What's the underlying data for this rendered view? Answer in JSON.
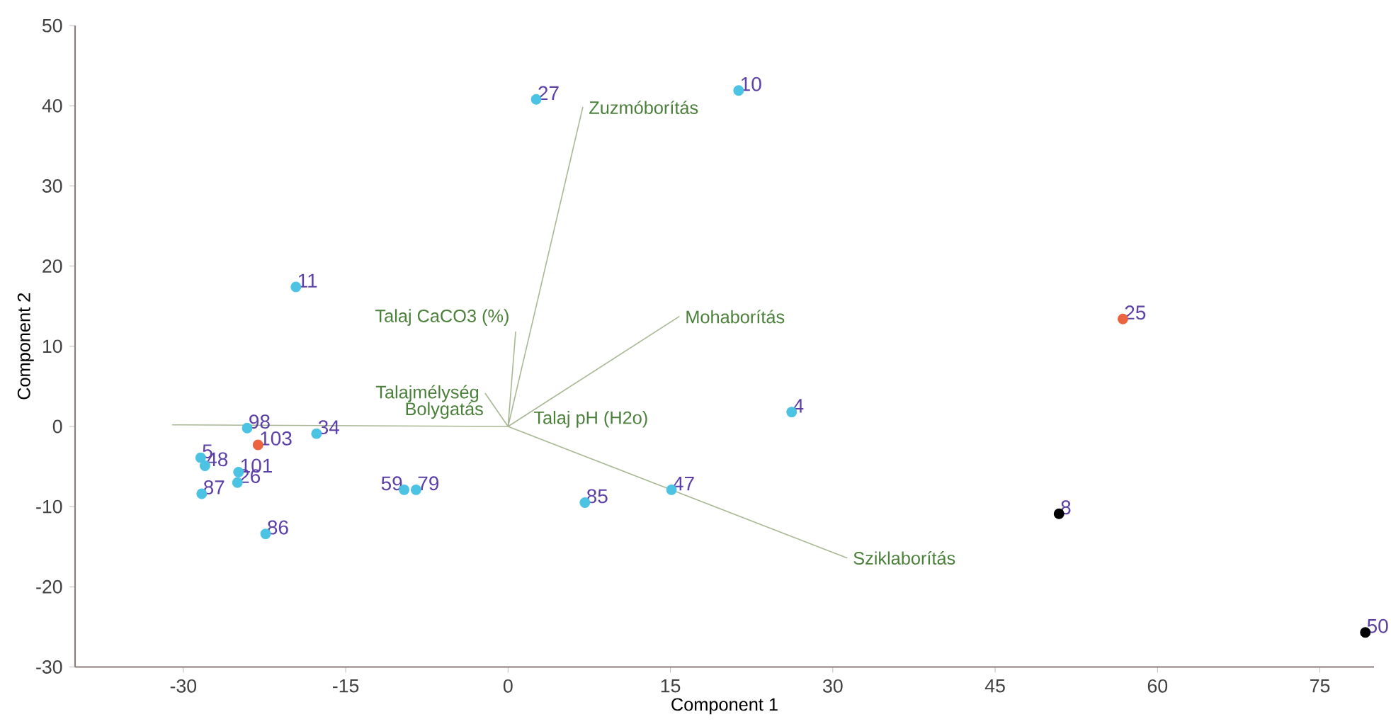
{
  "chart_data": {
    "type": "scatter",
    "xlabel": "Component 1",
    "ylabel": "Component 2",
    "xlim": [
      -40,
      80
    ],
    "ylim": [
      -30,
      50
    ],
    "xticks": [
      -30,
      -15,
      0,
      15,
      30,
      45,
      60,
      75
    ],
    "yticks": [
      -30,
      -20,
      -10,
      0,
      10,
      20,
      30,
      40,
      50
    ],
    "grid": false,
    "series": [
      {
        "type": "line",
        "color": "#a8b894",
        "x": [
          0,
          6.9,
          null,
          0,
          0.7,
          null,
          0,
          15.8,
          null,
          0,
          -2.1,
          null,
          0,
          -31.0,
          null,
          0,
          31.3
        ],
        "values": [
          0,
          39.8,
          null,
          0,
          11.8,
          null,
          0,
          13.7,
          null,
          0,
          4.1,
          null,
          0,
          0.2,
          null,
          0,
          -16.4
        ]
      },
      {
        "color": "#4cc3e3",
        "marker": "circle",
        "x": [
          2.6,
          21.3,
          -19.6,
          26.2,
          15.1,
          7.1,
          -9.6,
          -8.5,
          -17.7,
          -24.1,
          -28.4,
          -28.0,
          -24.9,
          -25.0,
          -28.3,
          -22.4
        ],
        "values": [
          40.8,
          41.9,
          17.4,
          1.8,
          -7.9,
          -9.5,
          -7.9,
          -7.9,
          -0.9,
          -0.2,
          -3.9,
          -4.9,
          -5.7,
          -7.0,
          -8.4,
          -13.4
        ]
      },
      {
        "color": "#e9643f",
        "marker": "circle",
        "x": [
          56.8,
          -23.1
        ],
        "values": [
          13.4,
          -2.3
        ]
      },
      {
        "color": "#000000",
        "marker": "circle",
        "x": [
          50.9,
          79.2
        ],
        "values": [
          -10.9,
          -25.7
        ]
      }
    ],
    "annotations": [
      {
        "text": "Zuzmóborítás",
        "x": 6.9,
        "y": 39.8
      },
      {
        "text": "Talaj CaCO3 (%)",
        "x": 0.7,
        "y": 11.8
      },
      {
        "text": "Mohaborítás",
        "x": 15.8,
        "y": 13.7
      },
      {
        "text": "Talajmélység",
        "x": -2.1,
        "y": 4.1
      },
      {
        "text": "Bolygatás",
        "x": -1.7,
        "y": 0.2
      },
      {
        "text": "Talaj pH (H2o)",
        "x": 1.8,
        "y": -0.9
      },
      {
        "text": "Sziklaborítás",
        "x": 31.3,
        "y": -16.4
      },
      {
        "text": "27",
        "x": 2.6,
        "y": 40.8
      },
      {
        "text": "10",
        "x": 21.3,
        "y": 41.9
      },
      {
        "text": "11",
        "x": -19.6,
        "y": 17.4
      },
      {
        "text": "4",
        "x": 26.2,
        "y": 1.8
      },
      {
        "text": "47",
        "x": 15.1,
        "y": -7.9
      },
      {
        "text": "85",
        "x": 7.1,
        "y": -9.5
      },
      {
        "text": "59",
        "x": -9.6,
        "y": -7.9
      },
      {
        "text": "79",
        "x": -8.5,
        "y": -7.9
      },
      {
        "text": "34",
        "x": -17.7,
        "y": -0.9
      },
      {
        "text": "98",
        "x": -24.1,
        "y": -0.2
      },
      {
        "text": "5",
        "x": -28.4,
        "y": -3.9
      },
      {
        "text": "48",
        "x": -28.0,
        "y": -4.9
      },
      {
        "text": "101",
        "x": -24.9,
        "y": -5.7
      },
      {
        "text": "26",
        "x": -25.0,
        "y": -7.0
      },
      {
        "text": "87",
        "x": -28.3,
        "y": -8.4
      },
      {
        "text": "86",
        "x": -22.4,
        "y": -13.4
      },
      {
        "text": "25",
        "x": 56.8,
        "y": 13.4
      },
      {
        "text": "103",
        "x": -23.1,
        "y": -2.3
      },
      {
        "text": "8",
        "x": 50.9,
        "y": -10.9
      },
      {
        "text": "50",
        "x": 79.2,
        "y": -25.7
      }
    ]
  }
}
